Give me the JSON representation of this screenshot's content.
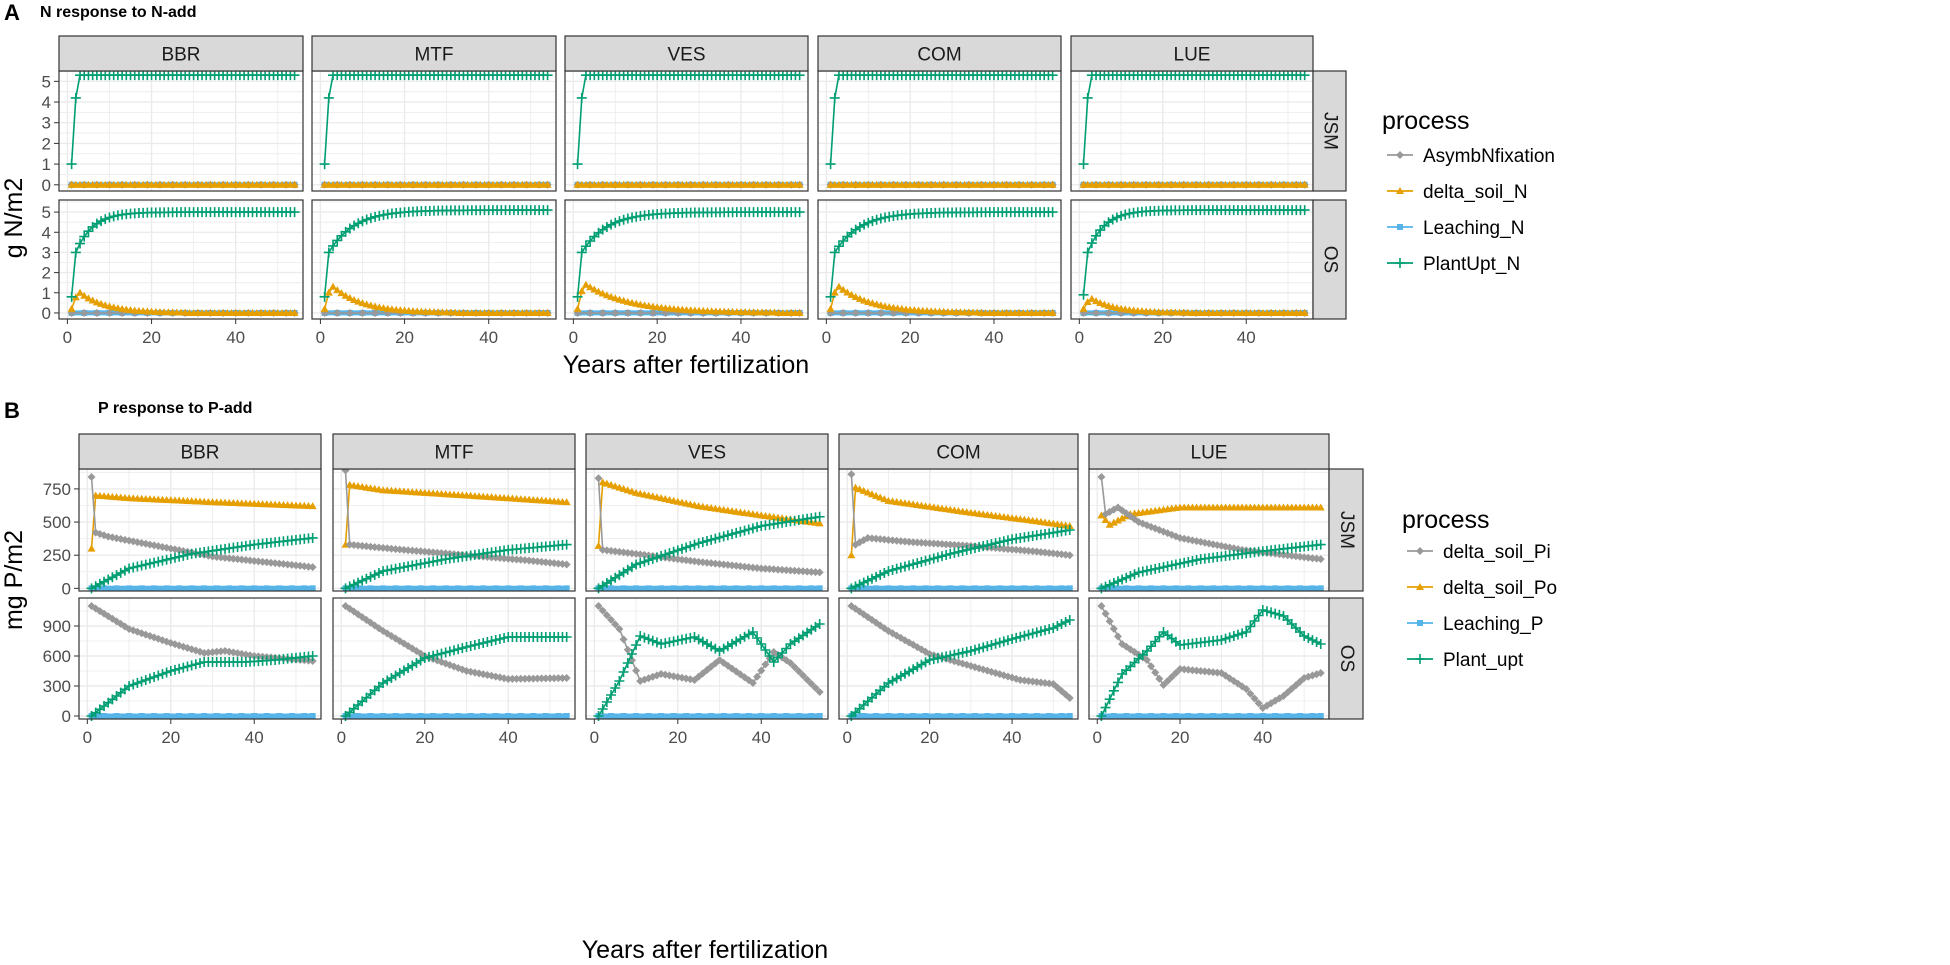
{
  "figure": {
    "panel_a_letter": "A",
    "panel_b_letter": "B"
  },
  "colors": {
    "AsymbNfixation": "#999999",
    "delta_soil_N": "#E69F00",
    "Leaching_N": "#56B4E9",
    "PlantUpt_N": "#009E73",
    "delta_soil_Pi": "#999999",
    "delta_soil_Po": "#E69F00",
    "Leaching_P": "#56B4E9",
    "Plant_upt": "#009E73",
    "strip_fill": "#d9d9d9",
    "grid": "#ebebeb"
  },
  "chart_data": [
    {
      "type": "line",
      "panel": "A",
      "title": "N response to N-add",
      "xlabel": "Years after fertilization",
      "ylabel": "g N/m2",
      "xlim": [
        -2,
        56
      ],
      "xticks": [
        0,
        20,
        40
      ],
      "columns": [
        "BBR",
        "MTF",
        "VES",
        "COM",
        "LUE"
      ],
      "rows": [
        {
          "label": "JSM",
          "ylim": [
            -0.3,
            5.5
          ],
          "yticks": [
            0,
            1,
            2,
            3,
            4,
            5
          ]
        },
        {
          "label": "OS",
          "ylim": [
            -0.3,
            5.6
          ],
          "yticks": [
            0,
            1,
            2,
            3,
            4,
            5
          ]
        }
      ],
      "legend_title": "process",
      "legend": [
        "AsymbNfixation",
        "delta_soil_N",
        "Leaching_N",
        "PlantUpt_N"
      ],
      "series_models": {
        "JSM": {
          "PlantUpt_N": {
            "kind": "saturate_fast",
            "start": 1.0,
            "second": 4.2,
            "plateau": 5.3
          },
          "delta_soil_N": {
            "kind": "flat",
            "value": 0.0
          },
          "AsymbNfixation": {
            "kind": "flat",
            "value": 0.0
          },
          "Leaching_N": {
            "kind": "flat",
            "value": 0.0
          }
        },
        "OS": {
          "PlantUpt_N": {
            "BBR": [
              0.8,
              5.0,
              4.0
            ],
            "MTF": [
              0.8,
              5.1,
              6.0
            ],
            "VES": [
              0.8,
              5.0,
              6.0
            ],
            "COM": [
              0.8,
              5.0,
              6.0
            ],
            "LUE": [
              0.9,
              5.1,
              4.0
            ]
          },
          "delta_soil_N": {
            "BBR": [
              1.0,
              28
            ],
            "MTF": [
              1.3,
              32
            ],
            "VES": [
              1.4,
              48
            ],
            "COM": [
              1.3,
              36
            ],
            "LUE": [
              0.7,
              26
            ]
          },
          "AsymbNfixation": {
            "kind": "flat",
            "value": 0.0
          },
          "Leaching_N": {
            "kind": "flat",
            "value": 0.0
          }
        }
      }
    },
    {
      "type": "line",
      "panel": "B",
      "title": "P response to P-add",
      "xlabel": "Years after fertilization",
      "ylabel": "mg P/m2",
      "xlim": [
        -2,
        56
      ],
      "xticks": [
        0,
        20,
        40
      ],
      "columns": [
        "BBR",
        "MTF",
        "VES",
        "COM",
        "LUE"
      ],
      "rows": [
        {
          "label": "JSM",
          "ylim": [
            -20,
            900
          ],
          "yticks": [
            0,
            250,
            500,
            750
          ]
        },
        {
          "label": "OS",
          "ylim": [
            -30,
            1180
          ],
          "yticks": [
            0,
            300,
            600,
            900
          ]
        }
      ],
      "legend_title": "process",
      "legend": [
        "delta_soil_Pi",
        "delta_soil_Po",
        "Leaching_P",
        "Plant_upt"
      ],
      "series_knots": {
        "JSM": {
          "delta_soil_Pi": {
            "BBR": [
              [
                1,
                840
              ],
              [
                2,
                420
              ],
              [
                5,
                390
              ],
              [
                15,
                330
              ],
              [
                30,
                240
              ],
              [
                45,
                190
              ],
              [
                54,
                160
              ]
            ],
            "MTF": [
              [
                1,
                890
              ],
              [
                2,
                330
              ],
              [
                5,
                320
              ],
              [
                15,
                290
              ],
              [
                30,
                250
              ],
              [
                45,
                210
              ],
              [
                54,
                180
              ]
            ],
            "VES": [
              [
                1,
                830
              ],
              [
                2,
                290
              ],
              [
                10,
                260
              ],
              [
                25,
                200
              ],
              [
                40,
                150
              ],
              [
                54,
                120
              ]
            ],
            "COM": [
              [
                1,
                860
              ],
              [
                2,
                330
              ],
              [
                5,
                380
              ],
              [
                15,
                350
              ],
              [
                30,
                320
              ],
              [
                45,
                280
              ],
              [
                54,
                250
              ]
            ],
            "LUE": [
              [
                1,
                840
              ],
              [
                2,
                560
              ],
              [
                5,
                610
              ],
              [
                10,
                500
              ],
              [
                20,
                380
              ],
              [
                35,
                290
              ],
              [
                54,
                220
              ]
            ]
          },
          "delta_soil_Po": {
            "BBR": [
              [
                1,
                300
              ],
              [
                2,
                700
              ],
              [
                10,
                680
              ],
              [
                30,
                650
              ],
              [
                54,
                620
              ]
            ],
            "MTF": [
              [
                1,
                330
              ],
              [
                2,
                780
              ],
              [
                10,
                740
              ],
              [
                30,
                700
              ],
              [
                54,
                650
              ]
            ],
            "VES": [
              [
                1,
                320
              ],
              [
                2,
                800
              ],
              [
                10,
                720
              ],
              [
                25,
                620
              ],
              [
                40,
                550
              ],
              [
                54,
                490
              ]
            ],
            "COM": [
              [
                1,
                250
              ],
              [
                2,
                760
              ],
              [
                10,
                660
              ],
              [
                30,
                570
              ],
              [
                45,
                510
              ],
              [
                54,
                470
              ]
            ],
            "LUE": [
              [
                1,
                550
              ],
              [
                3,
                480
              ],
              [
                8,
                560
              ],
              [
                20,
                610
              ],
              [
                54,
                610
              ]
            ]
          },
          "Plant_upt": {
            "BBR": [
              [
                1,
                0
              ],
              [
                10,
                150
              ],
              [
                25,
                260
              ],
              [
                40,
                330
              ],
              [
                54,
                380
              ]
            ],
            "MTF": [
              [
                1,
                0
              ],
              [
                10,
                130
              ],
              [
                25,
                220
              ],
              [
                40,
                290
              ],
              [
                54,
                330
              ]
            ],
            "VES": [
              [
                1,
                0
              ],
              [
                10,
                180
              ],
              [
                25,
                340
              ],
              [
                40,
                470
              ],
              [
                54,
                540
              ]
            ],
            "COM": [
              [
                1,
                0
              ],
              [
                10,
                130
              ],
              [
                25,
                260
              ],
              [
                40,
                370
              ],
              [
                54,
                440
              ]
            ],
            "LUE": [
              [
                1,
                0
              ],
              [
                10,
                120
              ],
              [
                25,
                220
              ],
              [
                40,
                280
              ],
              [
                54,
                330
              ]
            ]
          }
        },
        "OS": {
          "delta_soil_Pi": {
            "BBR": [
              [
                1,
                1100
              ],
              [
                10,
                870
              ],
              [
                20,
                730
              ],
              [
                28,
                630
              ],
              [
                33,
                650
              ],
              [
                40,
                600
              ],
              [
                54,
                550
              ]
            ],
            "MTF": [
              [
                1,
                1100
              ],
              [
                10,
                850
              ],
              [
                20,
                600
              ],
              [
                30,
                450
              ],
              [
                40,
                370
              ],
              [
                54,
                380
              ]
            ],
            "VES": [
              [
                1,
                1100
              ],
              [
                6,
                870
              ],
              [
                11,
                350
              ],
              [
                16,
                420
              ],
              [
                24,
                360
              ],
              [
                30,
                560
              ],
              [
                38,
                330
              ],
              [
                43,
                640
              ],
              [
                47,
                530
              ],
              [
                54,
                240
              ]
            ],
            "COM": [
              [
                1,
                1100
              ],
              [
                10,
                850
              ],
              [
                20,
                620
              ],
              [
                30,
                500
              ],
              [
                42,
                360
              ],
              [
                50,
                320
              ],
              [
                54,
                180
              ]
            ],
            "LUE": [
              [
                1,
                1100
              ],
              [
                6,
                720
              ],
              [
                12,
                560
              ],
              [
                16,
                310
              ],
              [
                20,
                470
              ],
              [
                30,
                430
              ],
              [
                36,
                270
              ],
              [
                40,
                80
              ],
              [
                45,
                200
              ],
              [
                50,
                380
              ],
              [
                54,
                430
              ]
            ]
          },
          "Plant_upt": {
            "BBR": [
              [
                1,
                0
              ],
              [
                10,
                300
              ],
              [
                20,
                450
              ],
              [
                28,
                540
              ],
              [
                33,
                540
              ],
              [
                38,
                540
              ],
              [
                45,
                560
              ],
              [
                54,
                600
              ]
            ],
            "MTF": [
              [
                1,
                0
              ],
              [
                10,
                330
              ],
              [
                20,
                580
              ],
              [
                30,
                690
              ],
              [
                40,
                790
              ],
              [
                54,
                790
              ]
            ],
            "VES": [
              [
                1,
                0
              ],
              [
                6,
                350
              ],
              [
                11,
                800
              ],
              [
                16,
                720
              ],
              [
                24,
                790
              ],
              [
                30,
                650
              ],
              [
                38,
                840
              ],
              [
                43,
                540
              ],
              [
                47,
                720
              ],
              [
                54,
                920
              ]
            ],
            "COM": [
              [
                1,
                0
              ],
              [
                10,
                330
              ],
              [
                20,
                560
              ],
              [
                30,
                650
              ],
              [
                40,
                770
              ],
              [
                50,
                880
              ],
              [
                54,
                960
              ]
            ],
            "LUE": [
              [
                1,
                0
              ],
              [
                6,
                420
              ],
              [
                12,
                650
              ],
              [
                16,
                840
              ],
              [
                20,
                710
              ],
              [
                30,
                760
              ],
              [
                36,
                840
              ],
              [
                40,
                1060
              ],
              [
                45,
                1000
              ],
              [
                50,
                800
              ],
              [
                54,
                720
              ]
            ]
          }
        }
      },
      "flat_zero_series": [
        "Leaching_P"
      ]
    }
  ]
}
